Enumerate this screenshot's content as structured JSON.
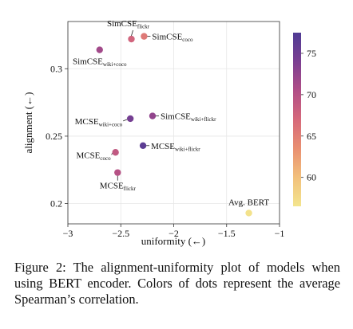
{
  "chart_data": {
    "type": "scatter",
    "xlabel": "uniformity (←)",
    "ylabel": "alignment (←)",
    "xlim": [
      -3,
      -1
    ],
    "ylim": [
      0.185,
      0.335
    ],
    "x_ticks": [
      -3,
      -2.5,
      -2,
      -1.5,
      -1
    ],
    "x_tick_labels": [
      "−3",
      "−2.5",
      "−2",
      "−1.5",
      "−1"
    ],
    "y_ticks": [
      0.2,
      0.25,
      0.3
    ],
    "y_tick_labels": [
      "0.2",
      "0.25",
      "0.3"
    ],
    "grid": true,
    "colorbar": {
      "range": [
        56.5,
        77.5
      ],
      "ticks": [
        60,
        65,
        70,
        75
      ],
      "tick_labels": [
        "60",
        "65",
        "70",
        "75"
      ],
      "colors": [
        "#f3e58e",
        "#f2c07b",
        "#e98f71",
        "#d6697b",
        "#b14e87",
        "#7b3f92",
        "#4f3c94"
      ]
    },
    "points": [
      {
        "label": "SimCSE",
        "sub": "flickr",
        "x": -2.4,
        "y": 0.322,
        "score": 67.5
      },
      {
        "label": "SimCSE",
        "sub": "coco",
        "x": -2.28,
        "y": 0.324,
        "score": 65.5
      },
      {
        "label": "SimCSE",
        "sub": "wiki+coco",
        "x": -2.7,
        "y": 0.314,
        "score": 71.5
      },
      {
        "label": "SimCSE",
        "sub": "wiki+flickr",
        "x": -2.2,
        "y": 0.265,
        "score": 72.5
      },
      {
        "label": "MCSE",
        "sub": "wiki+coco",
        "x": -2.41,
        "y": 0.263,
        "score": 74.5
      },
      {
        "label": "MCSE",
        "sub": "wiki+flickr",
        "x": -2.29,
        "y": 0.243,
        "score": 76.5
      },
      {
        "label": "MCSE",
        "sub": "coco",
        "x": -2.55,
        "y": 0.238,
        "score": 69.0
      },
      {
        "label": "MCSE",
        "sub": "flickr",
        "x": -2.53,
        "y": 0.223,
        "score": 70.0
      },
      {
        "label": "Avg. BERT",
        "sub": "",
        "x": -1.29,
        "y": 0.193,
        "score": 56.8
      }
    ]
  },
  "caption": "Figure 2: The alignment-uniformity plot of models when using BERT encoder. Colors of dots represent the average Spearman’s correlation."
}
